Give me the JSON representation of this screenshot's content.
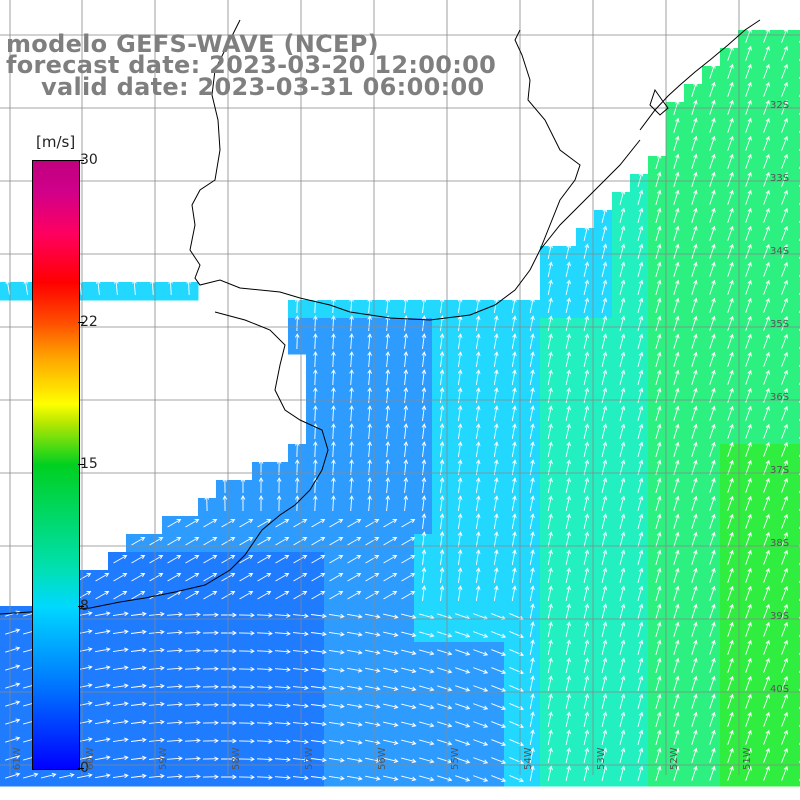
{
  "title": {
    "line1": "modelo GEFS-WAVE (NCEP)",
    "line2": "forecast date: 2023-03-20 12:00:00",
    "line3": "valid date: 2023-03-31 06:00:00"
  },
  "colorbar": {
    "unit": "[m/s]",
    "min": 0,
    "max": 30,
    "ticks": [
      "30",
      "22",
      "15",
      "8",
      "0"
    ],
    "tick_values": [
      30,
      22,
      15,
      8,
      0
    ],
    "colors": [
      "#0000ff",
      "#00d8ff",
      "#00d020",
      "#ffff00",
      "#ff0000",
      "#c00080"
    ]
  },
  "map": {
    "lat_labels": [
      "32S",
      "33S",
      "34S",
      "35S",
      "36S",
      "37S",
      "38S",
      "39S",
      "40S"
    ],
    "lon_labels": [
      "61W",
      "60W",
      "59W",
      "58W",
      "57W",
      "56W",
      "55W",
      "54W",
      "53W",
      "52W",
      "51W"
    ],
    "field": "wind speed and direction",
    "shading_palette": {
      "deep_blue": "#1f7cff",
      "blue": "#2e9cff",
      "cyan": "#22d8ff",
      "teal": "#22f0c0",
      "green": "#2cf080",
      "lime": "#30ee40"
    }
  }
}
